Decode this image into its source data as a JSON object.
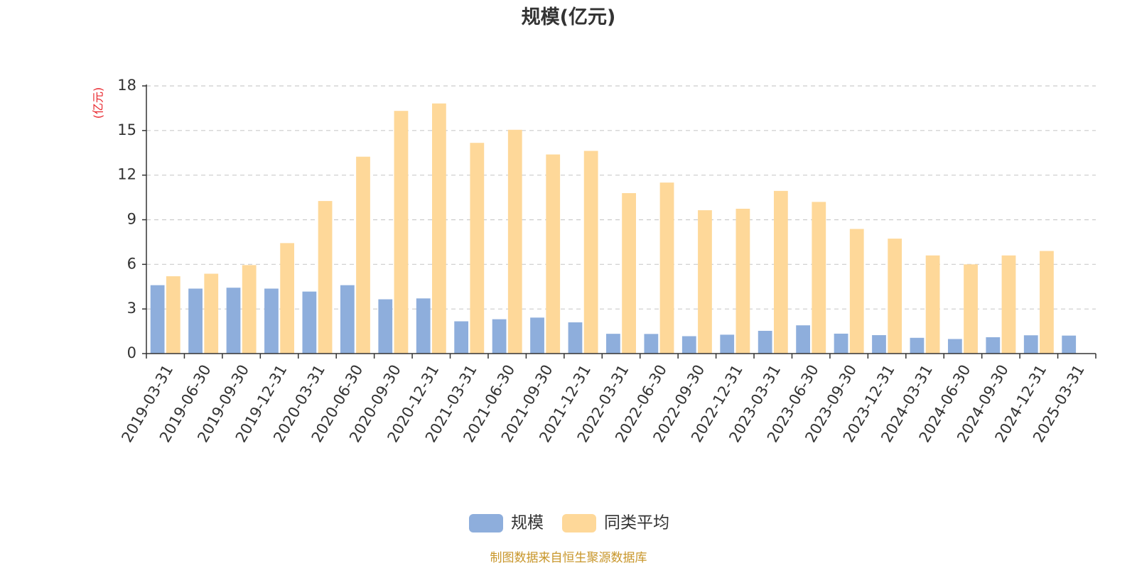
{
  "chart_data": {
    "type": "bar",
    "title": "规模(亿元)",
    "ylabel": "(亿元)",
    "ylim": [
      0,
      18
    ],
    "yticks": [
      0,
      3,
      6,
      9,
      12,
      15,
      18
    ],
    "grid": true,
    "legend_position": "bottom",
    "categories": [
      "2019-03-31",
      "2019-06-30",
      "2019-09-30",
      "2019-12-31",
      "2020-03-31",
      "2020-06-30",
      "2020-09-30",
      "2020-12-31",
      "2021-03-31",
      "2021-06-30",
      "2021-09-30",
      "2021-12-31",
      "2022-03-31",
      "2022-06-30",
      "2022-09-30",
      "2022-12-31",
      "2023-03-31",
      "2023-06-30",
      "2023-09-30",
      "2023-12-31",
      "2024-03-31",
      "2024-06-30",
      "2024-09-30",
      "2024-12-31",
      "2025-03-31"
    ],
    "series": [
      {
        "name": "规模",
        "color": "#8eaedc",
        "values": [
          4.6,
          4.37,
          4.43,
          4.37,
          4.17,
          4.6,
          3.65,
          3.71,
          2.17,
          2.31,
          2.42,
          2.1,
          1.33,
          1.32,
          1.17,
          1.27,
          1.53,
          1.9,
          1.34,
          1.24,
          1.06,
          0.98,
          1.1,
          1.23,
          1.21
        ]
      },
      {
        "name": "同类平均",
        "color": "#fed899",
        "values": [
          5.2,
          5.37,
          5.95,
          7.43,
          10.26,
          13.24,
          16.32,
          16.82,
          14.17,
          15.05,
          13.39,
          13.63,
          10.79,
          11.5,
          9.64,
          9.74,
          10.94,
          10.2,
          8.38,
          7.73,
          6.6,
          6.0,
          6.6,
          6.9,
          null
        ]
      }
    ],
    "source": "制图数据来自恒生聚源数据库"
  }
}
